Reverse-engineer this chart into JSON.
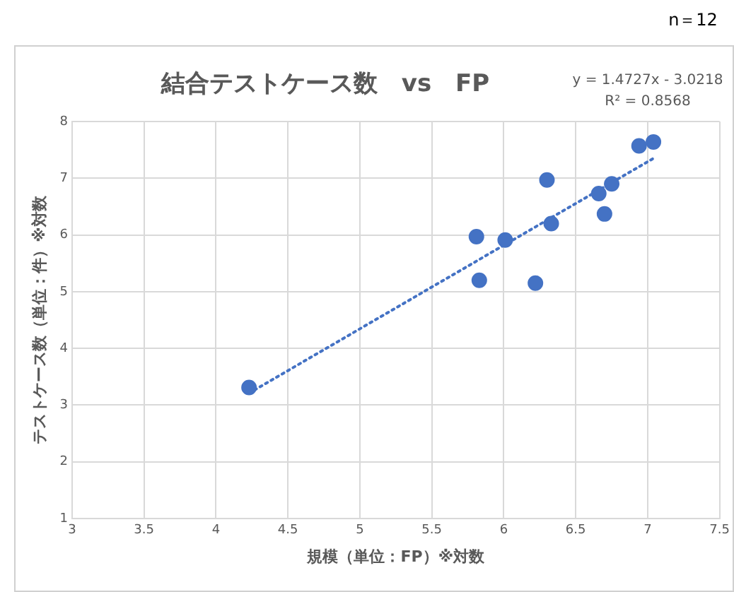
{
  "chart_data": {
    "type": "scatter",
    "title": "結合テストケース数　vs　FP",
    "xlabel": "規模（単位：FP）※対数",
    "ylabel": "テストケース数（単位：件）※対数",
    "annotations": [
      "y = 1.4727x - 3.0218",
      "R² = 0.8568",
      "n＝12"
    ],
    "xlim": [
      3,
      7.5
    ],
    "xticks": [
      3,
      3.5,
      4,
      4.5,
      5,
      5.5,
      6,
      6.5,
      7,
      7.5
    ],
    "ylim": [
      1,
      8
    ],
    "yticks": [
      1,
      2,
      3,
      4,
      5,
      6,
      7,
      8
    ],
    "grid": true,
    "legend": false,
    "series": [
      {
        "type": "scatter",
        "color": "#4472c4",
        "marker": "circle",
        "x": [
          6.94,
          7.04,
          6.3,
          6.66,
          6.75,
          6.7,
          6.33,
          5.81,
          6.01,
          5.83,
          6.22,
          4.23
        ],
        "values": [
          7.57,
          7.64,
          6.97,
          6.73,
          6.9,
          6.37,
          6.2,
          5.97,
          5.91,
          5.2,
          5.15,
          3.31
        ]
      },
      {
        "type": "line",
        "color": "#4472c4",
        "marker": "none",
        "line_style": "dotted",
        "x": [
          4.23,
          7.04
        ],
        "values": [
          3.21,
          7.35
        ]
      }
    ]
  }
}
